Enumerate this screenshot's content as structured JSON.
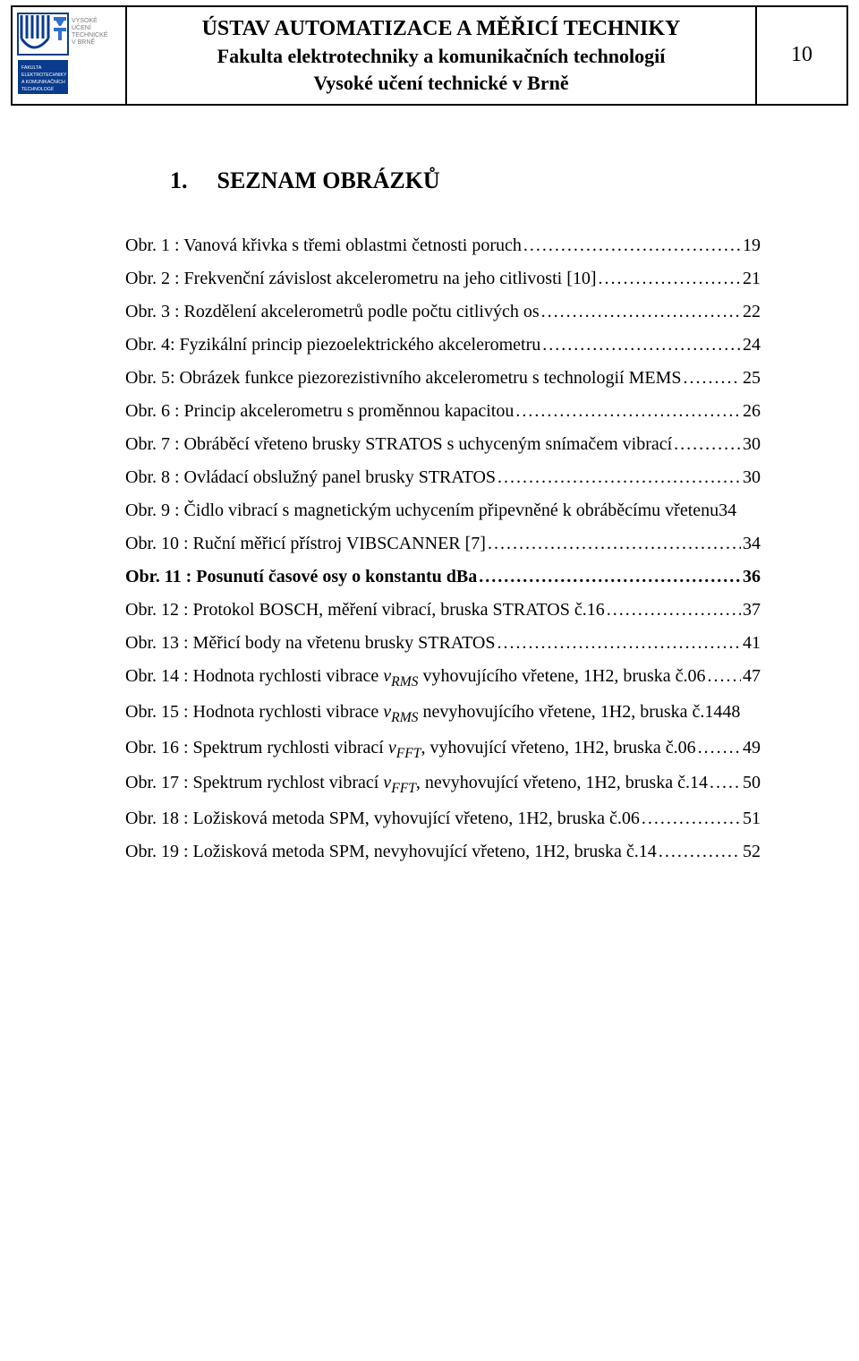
{
  "header": {
    "line1": "ÚSTAV AUTOMATIZACE A MĚŘICÍ TECHNIKY",
    "line2": "Fakulta elektrotechniky a komunikačních technologií",
    "line3": "Vysoké učení technické v Brně",
    "page_number": "10",
    "logo_caption1": "VYSOKÉ",
    "logo_caption2": "UČENÍ",
    "logo_caption3": "TECHNICKÉ",
    "logo_caption4": "V BRNĚ",
    "logo_sub1": "FAKULTA",
    "logo_sub2": "ELEKTROTECHNIKY",
    "logo_sub3": "A KOMUNIKAČNÍCH",
    "logo_sub4": "TECHNOLOGIÍ"
  },
  "heading": {
    "number": "1.",
    "title": "SEZNAM OBRÁZKŮ"
  },
  "toc": [
    {
      "text": "Obr. 1 : Vanová křivka s třemi oblastmi četnosti poruch",
      "page": "19",
      "bold": false
    },
    {
      "text": "Obr. 2 : Frekvenční závislost akcelerometru na jeho citlivosti [10]",
      "page": "21",
      "bold": false
    },
    {
      "text": "Obr. 3 : Rozdělení akcelerometrů podle počtu citlivých os",
      "page": "22",
      "bold": false
    },
    {
      "text": "Obr. 4: Fyzikální princip piezoelektrického akcelerometru",
      "page": "24",
      "bold": false
    },
    {
      "text": "Obr. 5: Obrázek funkce piezorezistivního akcelerometru s technologií MEMS",
      "page": "25",
      "bold": false
    },
    {
      "text": "Obr. 6 : Princip akcelerometru s proměnnou kapacitou",
      "page": "26",
      "bold": false
    },
    {
      "text": "Obr. 7 : Obráběcí vřeteno brusky STRATOS s uchyceným snímačem vibrací",
      "page": "30",
      "bold": false
    },
    {
      "text": "Obr. 8 : Ovládací obslužný panel brusky STRATOS",
      "page": "30",
      "bold": false
    },
    {
      "text": "Obr. 9 : Čidlo vibrací s magnetickým uchycením připevněné k obráběcímu vřetenu",
      "page": "34",
      "bold": false,
      "nodots": true
    },
    {
      "text": "Obr. 10 : Ruční měřicí přístroj VIBSCANNER [7]",
      "page": "34",
      "bold": false
    },
    {
      "text": "Obr. 11 : Posunutí časové osy o konstantu dBa",
      "page": "36",
      "bold": true
    },
    {
      "text": "Obr. 12 : Protokol BOSCH, měření vibrací, bruska STRATOS  č.16",
      "page": "37",
      "bold": false
    },
    {
      "text": "Obr. 13 : Měřicí body na vřetenu brusky STRATOS",
      "page": "41",
      "bold": false
    },
    {
      "text_pre": "Obr. 14 : Hodnota rychlosti vibrace ",
      "text_ital": "v",
      "text_sub": "RMS",
      "text_post": " vyhovujícího vřetene, 1H2, bruska č.06",
      "page": "47",
      "bold": false
    },
    {
      "text_pre": "Obr. 15 : Hodnota rychlosti vibrace ",
      "text_ital": "v",
      "text_sub": "RMS",
      "text_post": " nevyhovujícího vřetene, 1H2, bruska č.14",
      "page": "48",
      "bold": false,
      "nodots": true
    },
    {
      "text_pre": "Obr. 16 : Spektrum rychlosti vibrací ",
      "text_ital": "v",
      "text_sub": "FFT",
      "text_post": ", vyhovující vřeteno, 1H2,  bruska č.06",
      "page": "49",
      "bold": false
    },
    {
      "text_pre": "Obr. 17 : Spektrum rychlost vibrací ",
      "text_ital": "v",
      "text_sub": "FFT",
      "text_post": ", nevyhovující vřeteno, 1H2, bruska č.14",
      "page": "50",
      "bold": false
    },
    {
      "text": "Obr. 18 : Ložisková metoda SPM, vyhovující vřeteno, 1H2,  bruska č.06",
      "page": "51",
      "bold": false
    },
    {
      "text": "Obr. 19 : Ložisková metoda SPM, nevyhovující vřeteno, 1H2,  bruska č.14",
      "page": "52",
      "bold": false
    }
  ],
  "colors": {
    "logo_blue_dark": "#0a3b8c",
    "logo_blue_light": "#2f6fd0",
    "logo_grey": "#7a7a7a",
    "text": "#000000",
    "background": "#ffffff",
    "border": "#000000"
  }
}
